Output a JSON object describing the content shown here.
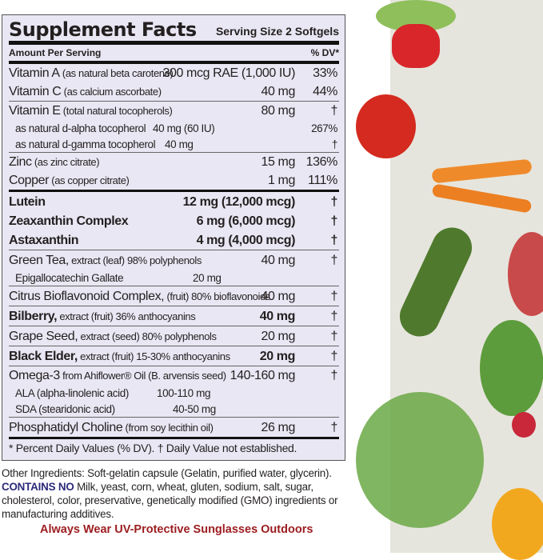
{
  "panel": {
    "title": "Supplement Facts",
    "serving": "Serving Size 2 Softgels",
    "amount_header": "Amount Per Serving",
    "dv_header": "% DV*",
    "rows": [
      {
        "name": "Vitamin A",
        "qual": " (as natural beta carotene)",
        "amount": "300 mcg RAE (1,000 IU)",
        "dv": "33%"
      },
      {
        "name": "Vitamin C",
        "qual": " (as calcium ascorbate)",
        "amount": "40 mg",
        "dv": "44%"
      },
      {
        "name": "Vitamin E",
        "qual": " (total natural tocopherols)",
        "amount": "80 mg",
        "dv": "†"
      },
      {
        "name": "as natural d-alpha tocopherol",
        "amount": "40 mg (60 IU)",
        "dv": "267%"
      },
      {
        "name": "as natural d-gamma tocopherol",
        "amount": "40 mg",
        "dv": "†"
      },
      {
        "name": "Zinc",
        "qual": " (as zinc citrate)",
        "amount": "15 mg",
        "dv": "136%"
      },
      {
        "name": "Copper",
        "qual": " (as copper citrate)",
        "amount": "1 mg",
        "dv": "111%"
      },
      {
        "name": "Lutein",
        "amount": "12 mg (12,000 mcg)",
        "dv": "†"
      },
      {
        "name": "Zeaxanthin Complex",
        "amount": "6 mg (6,000 mcg)",
        "dv": "†"
      },
      {
        "name": "Astaxanthin",
        "amount": "4 mg (4,000 mcg)",
        "dv": "†"
      },
      {
        "name": "Green Tea,",
        "qual": " extract (leaf) 98% polyphenols",
        "amount": "40 mg",
        "dv": "†"
      },
      {
        "name": "Epigallocatechin Gallate",
        "amount": "20 mg"
      },
      {
        "name": "Citrus Bioflavonoid Complex,",
        "qual": " (fruit) 80% bioflavonoids",
        "amount": "40 mg",
        "dv": "†"
      },
      {
        "name": "Bilberry,",
        "qual": " extract (fruit) 36% anthocyanins",
        "amount": "40 mg",
        "dv": "†"
      },
      {
        "name": "Grape Seed,",
        "qual": " extract (seed) 80% polyphenols",
        "amount": "20 mg",
        "dv": "†"
      },
      {
        "name": "Black Elder,",
        "qual": " extract (fruit) 15-30% anthocyanins",
        "amount": "20 mg",
        "dv": "†"
      },
      {
        "name": "Omega-3",
        "qual": " from Ahiflower® Oil (B. arvensis seed)",
        "amount": "140-160 mg",
        "dv": "†"
      },
      {
        "name": "ALA (alpha-linolenic acid)",
        "amount": "100-110 mg"
      },
      {
        "name": "SDA (stearidonic acid)",
        "amount": "40-50 mg"
      },
      {
        "name": "Phosphatidyl Choline",
        "qual": " (from soy lecithin oil)",
        "amount": "26 mg",
        "dv": "†"
      }
    ],
    "footnote": "* Percent Daily Values (% DV). † Daily Value not established."
  },
  "other_ingredients": "Other Ingredients: Soft-gelatin capsule (Gelatin, purified water, glycerin).",
  "contains_no_label": "CONTAINS NO",
  "contains_no_text": " Milk, yeast, corn, wheat, gluten, sodium, salt, sugar, cholesterol, color, preservative, genetically modified (GMO) ingredients or manufacturing additives.",
  "warning": "Always Wear UV-Protective Sunglasses Outdoors",
  "colors": {
    "panel_bg": "#e9e7f3",
    "contains_no": "#2c2a7a",
    "warning": "#9c1c1f"
  }
}
